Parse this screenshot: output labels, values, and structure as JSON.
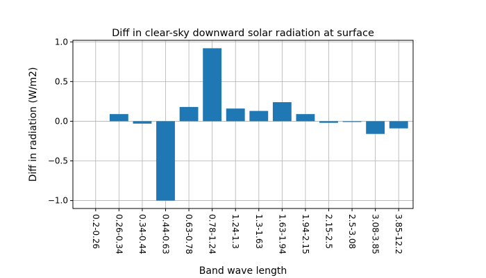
{
  "chart_data": {
    "type": "bar",
    "title": "Diff in clear-sky downward solar radiation at surface",
    "xlabel": "Band wave length",
    "ylabel": "Diff in radiation (W/m2)",
    "categories": [
      "0.2-0.26",
      "0.26-0.34",
      "0.34-0.44",
      "0.44-0.63",
      "0.63-0.78",
      "0.78-1.24",
      "1.24-1.3",
      "1.3-1.63",
      "1.63-1.94",
      "1.94-2.15",
      "2.15-2.5",
      "2.5-3.08",
      "3.08-3.85",
      "3.85-12.2"
    ],
    "values": [
      0.0,
      0.09,
      -0.03,
      -1.0,
      0.18,
      0.92,
      0.16,
      0.13,
      0.24,
      0.09,
      -0.02,
      -0.01,
      -0.16,
      -0.09
    ],
    "ylim": [
      -1.1,
      1.02
    ],
    "yticks": [
      -1.0,
      -0.5,
      0.0,
      0.5,
      1.0
    ],
    "ytick_labels": [
      "−1.0",
      "−0.5",
      "0.0",
      "0.5",
      "1.0"
    ],
    "grid": true,
    "bar_color": "#1f77b4"
  }
}
